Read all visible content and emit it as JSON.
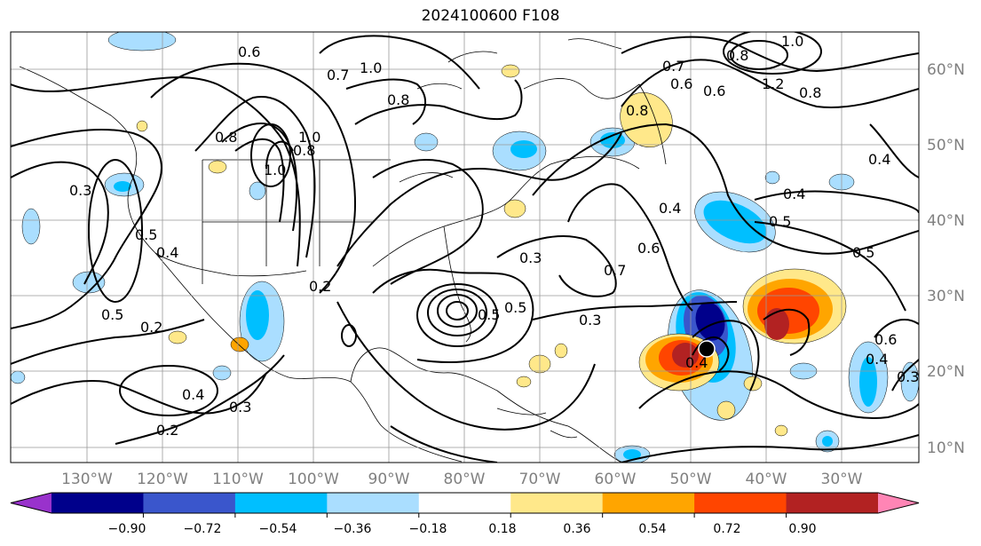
{
  "title": "2024100600 F108",
  "map": {
    "lon_labels": [
      "130°W",
      "120°W",
      "110°W",
      "100°W",
      "90°W",
      "80°W",
      "70°W",
      "60°W",
      "50°W",
      "40°W",
      "30°W"
    ],
    "lat_labels": [
      "60°N",
      "50°N",
      "40°N",
      "30°N",
      "20°N",
      "10°N"
    ],
    "contour_labels": [
      "0.6",
      "1.0",
      "0.7",
      "0.8",
      "0.8",
      "1.0",
      "0.8",
      "1.0",
      "0.3",
      "0.5",
      "0.4",
      "0.2",
      "0.5",
      "0.2",
      "0.4",
      "0.3",
      "0.2",
      "0.3",
      "0.7",
      "0.6",
      "0.4",
      "0.4",
      "0.5",
      "0.5",
      "0.3",
      "0.4",
      "0.8",
      "0.7",
      "0.6",
      "1.2",
      "0.8",
      "1.0",
      "0.8",
      "0.6",
      "0.4",
      "0.5",
      "0.5",
      "0.6",
      "0.3",
      "0.4"
    ],
    "cyclone_marker": "storm-center"
  },
  "colorbar": {
    "ticks": [
      "−0.90",
      "−0.72",
      "−0.54",
      "−0.36",
      "−0.18",
      "0.18",
      "0.36",
      "0.54",
      "0.72",
      "0.90"
    ],
    "colors": [
      "#9932cc",
      "#00008b",
      "#3a56cc",
      "#00bfff",
      "#aadeff",
      "#ffffff",
      "#ffe88a",
      "#ffa500",
      "#ff4500",
      "#b22222",
      "#ff85b5"
    ]
  }
}
